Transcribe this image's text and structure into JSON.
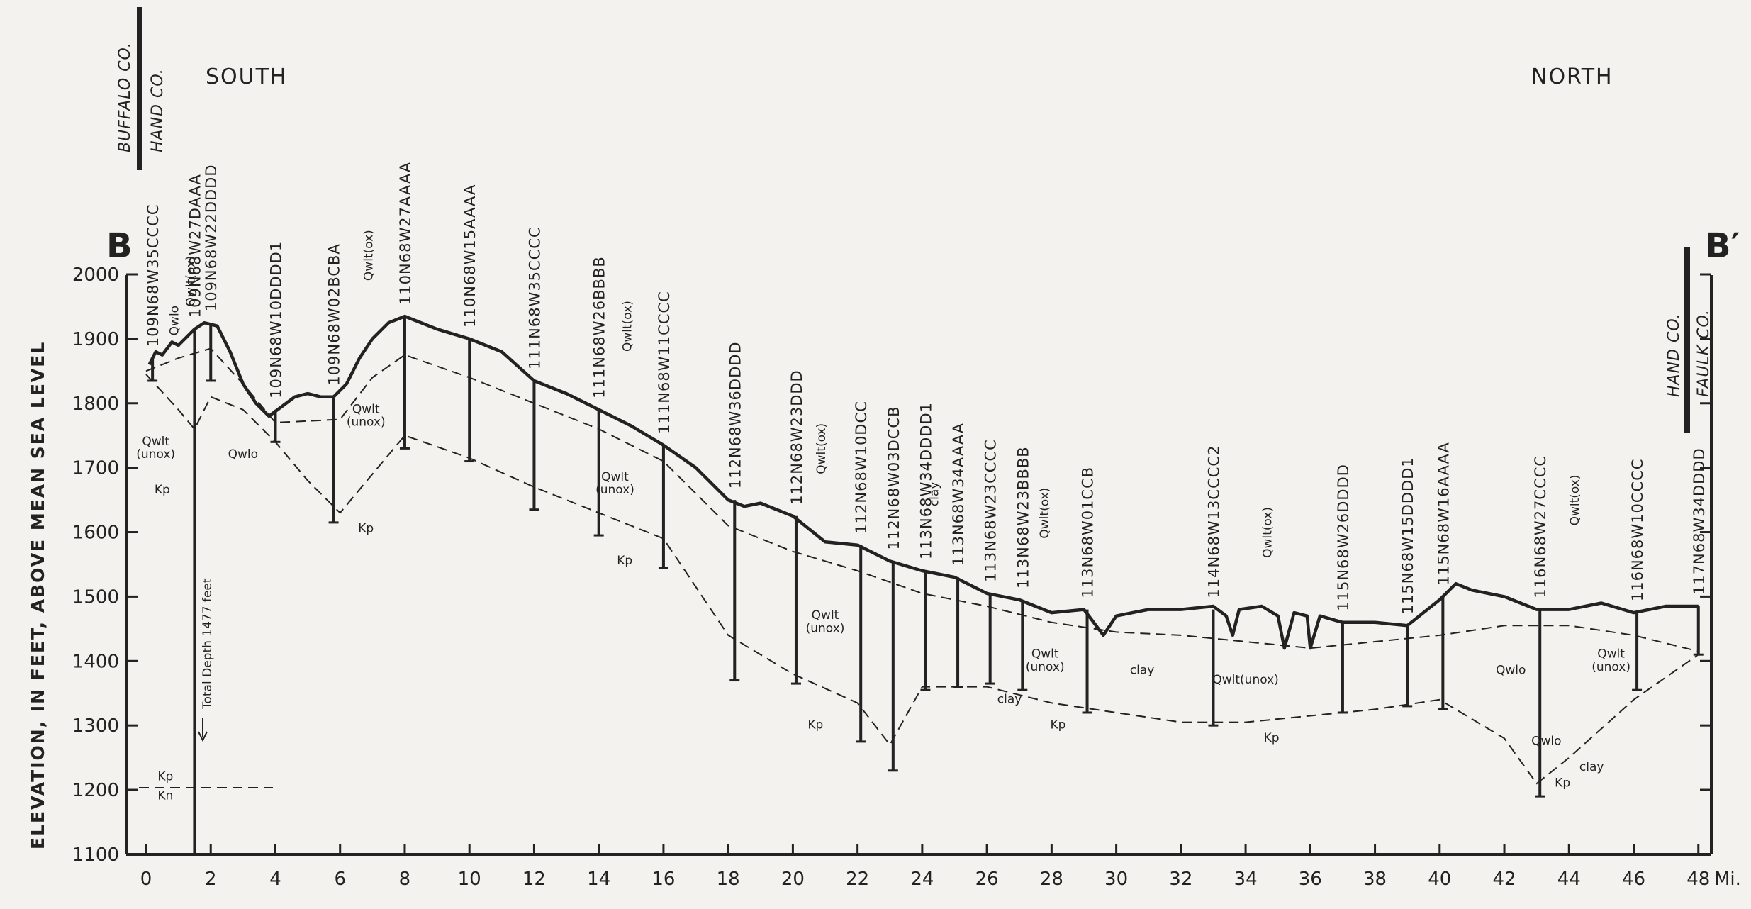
{
  "labels": {
    "south": "SOUTH",
    "north": "NORTH",
    "section_start": "B",
    "section_end": "B′",
    "y_axis": "ELEVATION, IN FEET, ABOVE MEAN SEA LEVEL",
    "x_unit": "Mi.",
    "total_depth": "Total Depth 1477 feet",
    "county_left_top": "BUFFALO CO.",
    "county_left_bottom": "HAND CO.",
    "county_right_top": "HAND CO.",
    "county_right_bottom": "FAULK CO."
  },
  "axes": {
    "y_ticks": [
      "2000",
      "1900",
      "1800",
      "1700",
      "1600",
      "1500",
      "1400",
      "1300",
      "1200",
      "1100"
    ],
    "x_ticks": [
      "0",
      "2",
      "4",
      "6",
      "8",
      "10",
      "12",
      "14",
      "16",
      "18",
      "20",
      "22",
      "24",
      "26",
      "28",
      "30",
      "32",
      "34",
      "36",
      "38",
      "40",
      "42",
      "44",
      "46",
      "48"
    ]
  },
  "wells": [
    {
      "id": "109N68W35CCCC",
      "mile": 0.2,
      "top": 1870,
      "bottom": 1835
    },
    {
      "id": "109N68W27DAAA",
      "mile": 1.5,
      "top": 1915,
      "bottom": 1100
    },
    {
      "id": "109N68W22DDDD",
      "mile": 2.0,
      "top": 1925,
      "bottom": 1835
    },
    {
      "id": "109N68W10DDDD1",
      "mile": 4.0,
      "top": 1790,
      "bottom": 1740
    },
    {
      "id": "109N68W02BCBA",
      "mile": 5.8,
      "top": 1810,
      "bottom": 1615
    },
    {
      "id": "110N68W27AAAA",
      "mile": 8.0,
      "top": 1935,
      "bottom": 1730
    },
    {
      "id": "110N68W15AAAA",
      "mile": 10.0,
      "top": 1900,
      "bottom": 1710
    },
    {
      "id": "111N68W35CCCC",
      "mile": 12.0,
      "top": 1835,
      "bottom": 1635
    },
    {
      "id": "111N68W26BBBB",
      "mile": 14.0,
      "top": 1790,
      "bottom": 1595
    },
    {
      "id": "111N68W11CCCC",
      "mile": 16.0,
      "top": 1735,
      "bottom": 1545
    },
    {
      "id": "112N68W36DDDD",
      "mile": 18.2,
      "top": 1650,
      "bottom": 1370
    },
    {
      "id": "112N68W23DDD",
      "mile": 20.1,
      "top": 1625,
      "bottom": 1365
    },
    {
      "id": "112N68W10DCC",
      "mile": 22.1,
      "top": 1580,
      "bottom": 1275
    },
    {
      "id": "112N68W03DCCB",
      "mile": 23.1,
      "top": 1555,
      "bottom": 1230
    },
    {
      "id": "113N68W34DDDD1",
      "mile": 24.1,
      "top": 1540,
      "bottom": 1355
    },
    {
      "id": "113N68W34AAAA",
      "mile": 25.1,
      "top": 1530,
      "bottom": 1360
    },
    {
      "id": "113N68W23CCCC",
      "mile": 26.1,
      "top": 1505,
      "bottom": 1365
    },
    {
      "id": "113N68W23BBBB",
      "mile": 27.1,
      "top": 1495,
      "bottom": 1355
    },
    {
      "id": "113N68W01CCB",
      "mile": 29.1,
      "top": 1480,
      "bottom": 1320
    },
    {
      "id": "114N68W13CCCC2",
      "mile": 33.0,
      "top": 1480,
      "bottom": 1300
    },
    {
      "id": "115N68W26DDDD",
      "mile": 37.0,
      "top": 1460,
      "bottom": 1320
    },
    {
      "id": "115N68W15DDDD1",
      "mile": 39.0,
      "top": 1455,
      "bottom": 1330
    },
    {
      "id": "115N68W16AAAA",
      "mile": 40.1,
      "top": 1500,
      "bottom": 1325
    },
    {
      "id": "116N68W27CCCC",
      "mile": 43.1,
      "top": 1480,
      "bottom": 1190
    },
    {
      "id": "116N68W10CCCC",
      "mile": 46.1,
      "top": 1475,
      "bottom": 1355
    },
    {
      "id": "117N68W34DDDD",
      "mile": 48.0,
      "top": 1485,
      "bottom": 1410
    }
  ],
  "surface": [
    [
      0.1,
      1860
    ],
    [
      0.3,
      1880
    ],
    [
      0.5,
      1875
    ],
    [
      0.8,
      1895
    ],
    [
      1.0,
      1890
    ],
    [
      1.3,
      1905
    ],
    [
      1.5,
      1915
    ],
    [
      1.8,
      1925
    ],
    [
      2.2,
      1920
    ],
    [
      2.6,
      1880
    ],
    [
      3.0,
      1830
    ],
    [
      3.4,
      1800
    ],
    [
      3.8,
      1780
    ],
    [
      4.2,
      1795
    ],
    [
      4.6,
      1810
    ],
    [
      5.0,
      1815
    ],
    [
      5.4,
      1810
    ],
    [
      5.8,
      1810
    ],
    [
      6.2,
      1830
    ],
    [
      6.6,
      1870
    ],
    [
      7.0,
      1900
    ],
    [
      7.5,
      1925
    ],
    [
      8.0,
      1935
    ],
    [
      9.0,
      1915
    ],
    [
      10.0,
      1900
    ],
    [
      11.0,
      1880
    ],
    [
      12.0,
      1835
    ],
    [
      13.0,
      1815
    ],
    [
      14.0,
      1790
    ],
    [
      15.0,
      1765
    ],
    [
      16.0,
      1735
    ],
    [
      17.0,
      1700
    ],
    [
      18.0,
      1650
    ],
    [
      18.5,
      1640
    ],
    [
      19.0,
      1645
    ],
    [
      20.0,
      1625
    ],
    [
      21.0,
      1585
    ],
    [
      22.0,
      1580
    ],
    [
      23.0,
      1555
    ],
    [
      24.0,
      1540
    ],
    [
      25.0,
      1530
    ],
    [
      26.0,
      1505
    ],
    [
      27.0,
      1495
    ],
    [
      28.0,
      1475
    ],
    [
      29.0,
      1480
    ],
    [
      29.6,
      1440
    ],
    [
      30.0,
      1470
    ],
    [
      31.0,
      1480
    ],
    [
      32.0,
      1480
    ],
    [
      33.0,
      1485
    ],
    [
      33.4,
      1470
    ],
    [
      33.6,
      1440
    ],
    [
      33.8,
      1480
    ],
    [
      34.5,
      1485
    ],
    [
      35.0,
      1470
    ],
    [
      35.2,
      1420
    ],
    [
      35.5,
      1475
    ],
    [
      35.9,
      1470
    ],
    [
      36.0,
      1420
    ],
    [
      36.3,
      1470
    ],
    [
      37.0,
      1460
    ],
    [
      38.0,
      1460
    ],
    [
      39.0,
      1455
    ],
    [
      40.0,
      1495
    ],
    [
      40.5,
      1520
    ],
    [
      41.0,
      1510
    ],
    [
      42.0,
      1500
    ],
    [
      43.0,
      1480
    ],
    [
      44.0,
      1480
    ],
    [
      45.0,
      1490
    ],
    [
      46.0,
      1475
    ],
    [
      47.0,
      1485
    ],
    [
      48.0,
      1485
    ]
  ],
  "contact_lines": [
    [
      [
        0.0,
        1850
      ],
      [
        1.0,
        1870
      ],
      [
        2.0,
        1885
      ],
      [
        3.0,
        1830
      ],
      [
        4.0,
        1770
      ],
      [
        6.0,
        1775
      ],
      [
        7.0,
        1840
      ],
      [
        8.0,
        1875
      ],
      [
        10.0,
        1840
      ],
      [
        12.0,
        1800
      ],
      [
        14.0,
        1760
      ],
      [
        16.0,
        1710
      ],
      [
        18.0,
        1610
      ],
      [
        20.0,
        1570
      ],
      [
        22.0,
        1540
      ],
      [
        24.0,
        1505
      ],
      [
        26.0,
        1485
      ],
      [
        28.0,
        1460
      ],
      [
        30.0,
        1445
      ],
      [
        32.0,
        1440
      ],
      [
        34.0,
        1430
      ],
      [
        36.0,
        1420
      ],
      [
        38.0,
        1430
      ],
      [
        40.0,
        1440
      ],
      [
        42.0,
        1455
      ],
      [
        44.0,
        1455
      ],
      [
        46.0,
        1440
      ],
      [
        48.0,
        1415
      ]
    ],
    [
      [
        0.0,
        1845
      ],
      [
        1.0,
        1790
      ],
      [
        1.5,
        1760
      ],
      [
        2.0,
        1810
      ],
      [
        3.0,
        1790
      ],
      [
        4.0,
        1740
      ],
      [
        5.0,
        1680
      ],
      [
        6.0,
        1630
      ],
      [
        7.0,
        1690
      ],
      [
        8.0,
        1750
      ],
      [
        10.0,
        1715
      ],
      [
        12.0,
        1670
      ],
      [
        14.0,
        1630
      ],
      [
        16.0,
        1590
      ],
      [
        18.0,
        1440
      ],
      [
        20.0,
        1380
      ],
      [
        22.0,
        1335
      ],
      [
        23.0,
        1270
      ],
      [
        24.0,
        1360
      ],
      [
        26.0,
        1360
      ],
      [
        28.0,
        1335
      ],
      [
        30.0,
        1320
      ],
      [
        32.0,
        1305
      ],
      [
        34.0,
        1305
      ],
      [
        36.0,
        1315
      ],
      [
        38.0,
        1325
      ],
      [
        40.0,
        1340
      ],
      [
        42.0,
        1280
      ],
      [
        43.0,
        1210
      ],
      [
        44.0,
        1250
      ],
      [
        46.0,
        1340
      ],
      [
        48.0,
        1410
      ]
    ]
  ],
  "annotations": [
    {
      "text": "Qwlo",
      "mile": 1.0,
      "elev": 1905,
      "rotate": -90
    },
    {
      "text": "Qwlt(ox)",
      "mile": 1.5,
      "elev": 1950,
      "rotate": -90
    },
    {
      "text": "Qwlt(ox)",
      "mile": 7.0,
      "elev": 1990,
      "rotate": -90
    },
    {
      "text": "Qwlt(ox)",
      "mile": 15.0,
      "elev": 1880,
      "rotate": -90
    },
    {
      "text": "Qwlt(ox)",
      "mile": 21.0,
      "elev": 1690,
      "rotate": -90
    },
    {
      "text": "Qwlt(ox)",
      "mile": 27.9,
      "elev": 1590,
      "rotate": -90
    },
    {
      "text": "Qwlt(ox)",
      "mile": 34.8,
      "elev": 1560,
      "rotate": -90
    },
    {
      "text": "Qwlt(ox)",
      "mile": 44.3,
      "elev": 1610,
      "rotate": -90
    },
    {
      "text": "clay",
      "mile": 24.5,
      "elev": 1640,
      "rotate": -90
    },
    {
      "text": "Qwlt",
      "mile": 0.3,
      "elev": 1735,
      "rotate": 0
    },
    {
      "text": "(unox)",
      "mile": 0.3,
      "elev": 1715,
      "rotate": 0
    },
    {
      "text": "Kp",
      "mile": 0.5,
      "elev": 1660,
      "rotate": 0
    },
    {
      "text": "Qwlo",
      "mile": 3.0,
      "elev": 1715,
      "rotate": 0
    },
    {
      "text": "Qwlt",
      "mile": 6.8,
      "elev": 1785,
      "rotate": 0
    },
    {
      "text": "(unox)",
      "mile": 6.8,
      "elev": 1765,
      "rotate": 0
    },
    {
      "text": "Kp",
      "mile": 6.8,
      "elev": 1600,
      "rotate": 0
    },
    {
      "text": "Qwlt",
      "mile": 14.5,
      "elev": 1680,
      "rotate": 0
    },
    {
      "text": "(unox)",
      "mile": 14.5,
      "elev": 1660,
      "rotate": 0
    },
    {
      "text": "Kp",
      "mile": 14.8,
      "elev": 1550,
      "rotate": 0
    },
    {
      "text": "Qwlt",
      "mile": 21.0,
      "elev": 1465,
      "rotate": 0
    },
    {
      "text": "(unox)",
      "mile": 21.0,
      "elev": 1445,
      "rotate": 0
    },
    {
      "text": "Kp",
      "mile": 20.7,
      "elev": 1295,
      "rotate": 0
    },
    {
      "text": "Qwlt",
      "mile": 27.8,
      "elev": 1405,
      "rotate": 0
    },
    {
      "text": "(unox)",
      "mile": 27.8,
      "elev": 1385,
      "rotate": 0
    },
    {
      "text": "clay",
      "mile": 26.7,
      "elev": 1335,
      "rotate": 0
    },
    {
      "text": "Kp",
      "mile": 28.2,
      "elev": 1295,
      "rotate": 0
    },
    {
      "text": "clay",
      "mile": 30.8,
      "elev": 1380,
      "rotate": 0
    },
    {
      "text": "Qwlt(unox)",
      "mile": 34.0,
      "elev": 1365,
      "rotate": 0
    },
    {
      "text": "Kp",
      "mile": 34.8,
      "elev": 1275,
      "rotate": 0
    },
    {
      "text": "Qwlo",
      "mile": 42.2,
      "elev": 1380,
      "rotate": 0
    },
    {
      "text": "Qwlt",
      "mile": 45.3,
      "elev": 1405,
      "rotate": 0
    },
    {
      "text": "(unox)",
      "mile": 45.3,
      "elev": 1385,
      "rotate": 0
    },
    {
      "text": "Qwlo",
      "mile": 43.3,
      "elev": 1270,
      "rotate": 0
    },
    {
      "text": "clay",
      "mile": 44.7,
      "elev": 1230,
      "rotate": 0
    },
    {
      "text": "Kp",
      "mile": 43.8,
      "elev": 1205,
      "rotate": 0
    },
    {
      "text": "Kp",
      "mile": 0.6,
      "elev": 1215,
      "rotate": 0
    },
    {
      "text": "Kn",
      "mile": 0.6,
      "elev": 1185,
      "rotate": 0
    }
  ],
  "colors": {
    "ink": "#222222",
    "background": "#f4f2ee"
  }
}
